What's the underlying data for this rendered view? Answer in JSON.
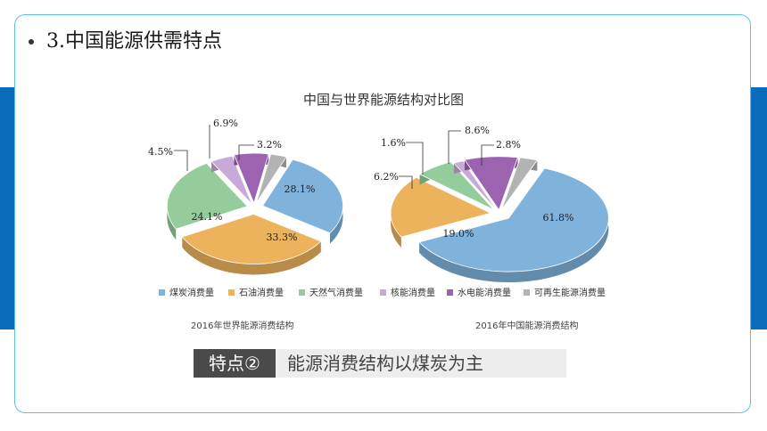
{
  "slide": {
    "heading_number": "3.",
    "heading_text": "中国能源供需特点",
    "chart_title": "中国与世界能源结构对比图",
    "feature_tag": "特点②",
    "feature_text": "能源消费结构以煤炭为主"
  },
  "chart_data": [
    {
      "type": "pie",
      "caption": "2016年世界能源消费结构",
      "categories": [
        "煤炭消费量",
        "石油消费量",
        "天然气消费量",
        "核能消费量",
        "水电能消费量",
        "可再生能源消费量"
      ],
      "values": [
        28.1,
        33.3,
        24.1,
        4.5,
        6.9,
        3.2
      ],
      "labels": [
        "28.1%",
        "33.3%",
        "24.1%",
        "4.5%",
        "6.9%",
        "3.2%"
      ],
      "legend": "bottom"
    },
    {
      "type": "pie",
      "caption": "2016年中国能源消费结构",
      "categories": [
        "煤炭消费量",
        "石油消费量",
        "天然气消费量",
        "核能消费量",
        "水电能消费量",
        "可再生能源消费量"
      ],
      "values": [
        61.8,
        19.0,
        6.2,
        1.6,
        8.6,
        2.8
      ],
      "labels": [
        "61.8%",
        "19.0%",
        "6.2%",
        "1.6%",
        "8.6%",
        "2.8%"
      ],
      "legend": "bottom"
    }
  ],
  "legend": {
    "items": [
      "煤炭消费量",
      "石油消费量",
      "天然气消费量",
      "核能消费量",
      "水电能消费量",
      "可再生能源消费量"
    ]
  },
  "colors": {
    "coal": "#7fb3dc",
    "oil": "#ecb25c",
    "gas": "#95cc9c",
    "nuclear": "#c9a9d8",
    "hydro": "#9c64b0",
    "renewable": "#b3b3b3",
    "accent_bar": "#0b6bbd",
    "card_border": "#5fc0e6"
  }
}
